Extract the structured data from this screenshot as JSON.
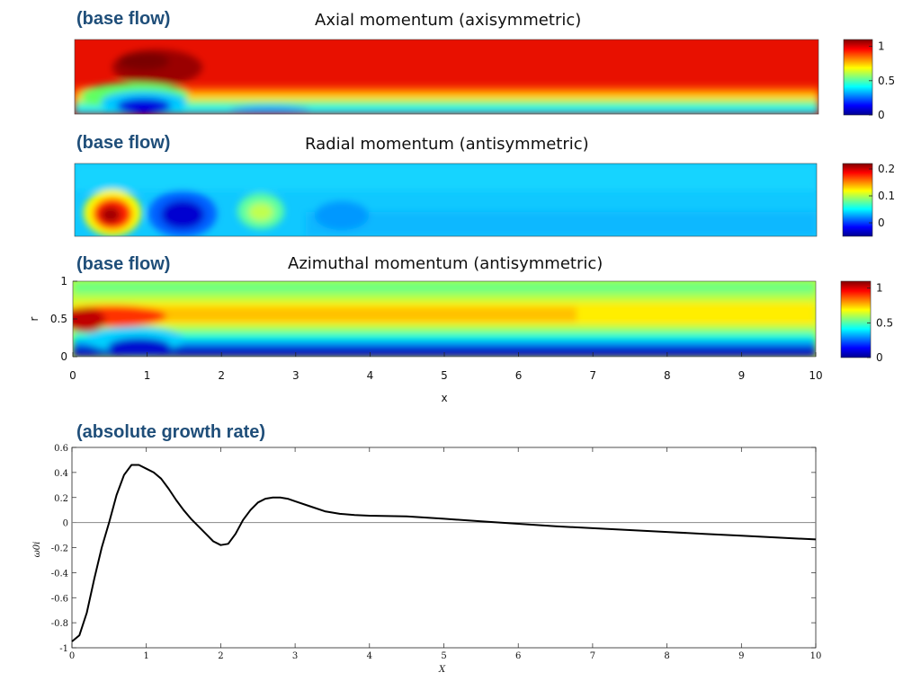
{
  "captions": [
    "(base flow)",
    "(base flow)",
    "(base flow)",
    "(absolute growth rate)"
  ],
  "panel_titles": [
    "Axial momentum (axisymmetric)",
    "Radial momentum (antisymmetric)",
    "Azimuthal momentum (antisymmetric)"
  ],
  "colormap": "jet",
  "chart_data": [
    {
      "type": "heatmap",
      "title": "Axial momentum (axisymmetric)",
      "colorbar_ticks": [
        "1",
        "0.5",
        "0"
      ],
      "clim": [
        0,
        1.1
      ]
    },
    {
      "type": "heatmap",
      "title": "Radial momentum (antisymmetric)",
      "colorbar_ticks": [
        "0.2",
        "0.1",
        "0"
      ],
      "clim": [
        -0.05,
        0.22
      ]
    },
    {
      "type": "heatmap",
      "title": "Azimuthal momentum (antisymmetric)",
      "xlabel": "x",
      "ylabel": "r",
      "xlim": [
        0,
        10
      ],
      "ylim": [
        0,
        1
      ],
      "x_ticks": [
        "0",
        "1",
        "2",
        "3",
        "4",
        "5",
        "6",
        "7",
        "8",
        "9",
        "10"
      ],
      "y_ticks": [
        "1",
        "0.5",
        "0"
      ],
      "colorbar_ticks": [
        "1",
        "0.5",
        "0"
      ],
      "clim": [
        0,
        1.1
      ]
    },
    {
      "type": "line",
      "xlabel": "X",
      "ylabel": "ω0i",
      "xlim": [
        0,
        10
      ],
      "ylim": [
        -1,
        0.6
      ],
      "x_ticks": [
        "0",
        "1",
        "2",
        "3",
        "4",
        "5",
        "6",
        "7",
        "8",
        "9",
        "10"
      ],
      "y_ticks": [
        "0.6",
        "0.4",
        "0.2",
        "0",
        "-0.2",
        "-0.4",
        "-0.6",
        "-0.8",
        "-1"
      ],
      "grid": false,
      "zero_line": true,
      "series": [
        {
          "color": "#000000",
          "x": [
            0,
            0.1,
            0.2,
            0.3,
            0.4,
            0.5,
            0.6,
            0.7,
            0.8,
            0.9,
            1.0,
            1.1,
            1.2,
            1.3,
            1.4,
            1.5,
            1.6,
            1.7,
            1.8,
            1.9,
            2.0,
            2.1,
            2.2,
            2.3,
            2.4,
            2.5,
            2.6,
            2.7,
            2.8,
            2.9,
            3.0,
            3.2,
            3.4,
            3.6,
            3.8,
            4.0,
            4.5,
            5.0,
            5.5,
            6.0,
            6.5,
            7.0,
            7.5,
            8.0,
            8.5,
            9.0,
            9.5,
            10.0
          ],
          "y": [
            -0.95,
            -0.9,
            -0.72,
            -0.45,
            -0.2,
            0.0,
            0.22,
            0.38,
            0.46,
            0.46,
            0.43,
            0.4,
            0.35,
            0.27,
            0.18,
            0.1,
            0.03,
            -0.03,
            -0.09,
            -0.15,
            -0.18,
            -0.17,
            -0.09,
            0.02,
            0.1,
            0.16,
            0.19,
            0.2,
            0.2,
            0.19,
            0.17,
            0.13,
            0.09,
            0.07,
            0.06,
            0.055,
            0.05,
            0.03,
            0.01,
            -0.01,
            -0.03,
            -0.045,
            -0.06,
            -0.075,
            -0.09,
            -0.105,
            -0.12,
            -0.135
          ]
        }
      ]
    }
  ]
}
